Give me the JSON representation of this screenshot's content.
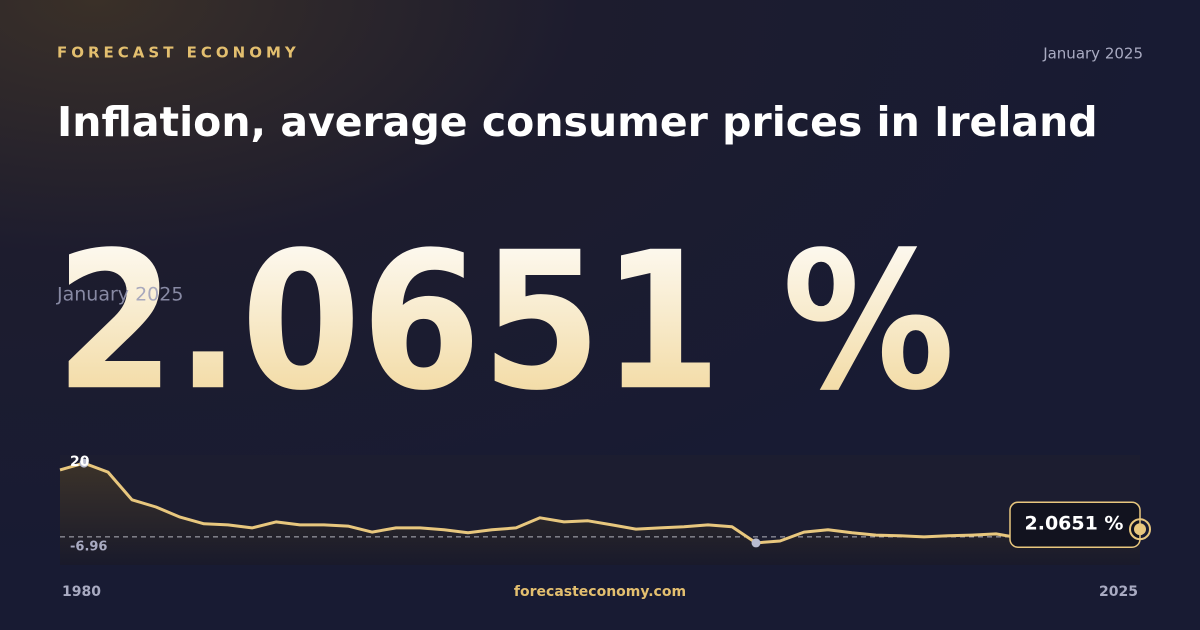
{
  "brand": "FORECAST ECONOMY",
  "date": "January 2025",
  "title": "Inflation, average consumer prices in Ireland",
  "headline": {
    "date": "January 2025",
    "value_text": "2.0651 %"
  },
  "footer": {
    "site": "forecasteconomy.com"
  },
  "chart_data": {
    "type": "line",
    "x": [
      1980,
      1981,
      1982,
      1983,
      1984,
      1985,
      1986,
      1987,
      1988,
      1989,
      1990,
      1991,
      1992,
      1993,
      1994,
      1995,
      1996,
      1997,
      1998,
      1999,
      2000,
      2001,
      2002,
      2003,
      2004,
      2005,
      2006,
      2007,
      2008,
      2009,
      2010,
      2011,
      2012,
      2013,
      2014,
      2015,
      2016,
      2017,
      2018,
      2019,
      2020,
      2021,
      2022,
      2023,
      2024,
      2025
    ],
    "values": [
      17.9,
      19.7,
      17.3,
      9.9,
      8.0,
      5.3,
      3.5,
      3.2,
      2.4,
      4.0,
      3.2,
      3.2,
      2.9,
      1.3,
      2.4,
      2.4,
      1.9,
      1.1,
      1.9,
      2.4,
      5.1,
      4.0,
      4.3,
      3.2,
      2.1,
      2.4,
      2.7,
      3.2,
      2.7,
      -1.6,
      -1.1,
      1.3,
      1.9,
      1.1,
      0.5,
      0.3,
      0.0,
      0.3,
      0.5,
      0.8,
      -0.3,
      0.8,
      1.1,
      0.5,
      0.5,
      2.0651
    ],
    "value_labels": [
      null,
      null,
      null,
      null,
      null,
      null,
      null,
      null,
      null,
      null,
      null,
      null,
      null,
      null,
      null,
      null,
      null,
      null,
      null,
      null,
      null,
      null,
      null,
      null,
      null,
      null,
      null,
      null,
      null,
      null,
      null,
      null,
      null,
      null,
      null,
      null,
      null,
      null,
      null,
      null,
      null,
      null,
      null,
      null,
      null,
      "2.0651 %"
    ],
    "color": "#e8c77e",
    "xlim": [
      1980,
      2025
    ],
    "xticks": [
      1980,
      2025
    ],
    "ylim": [
      -6.96,
      20
    ],
    "yticks": [
      -6.96,
      20
    ],
    "zero_line": true
  }
}
